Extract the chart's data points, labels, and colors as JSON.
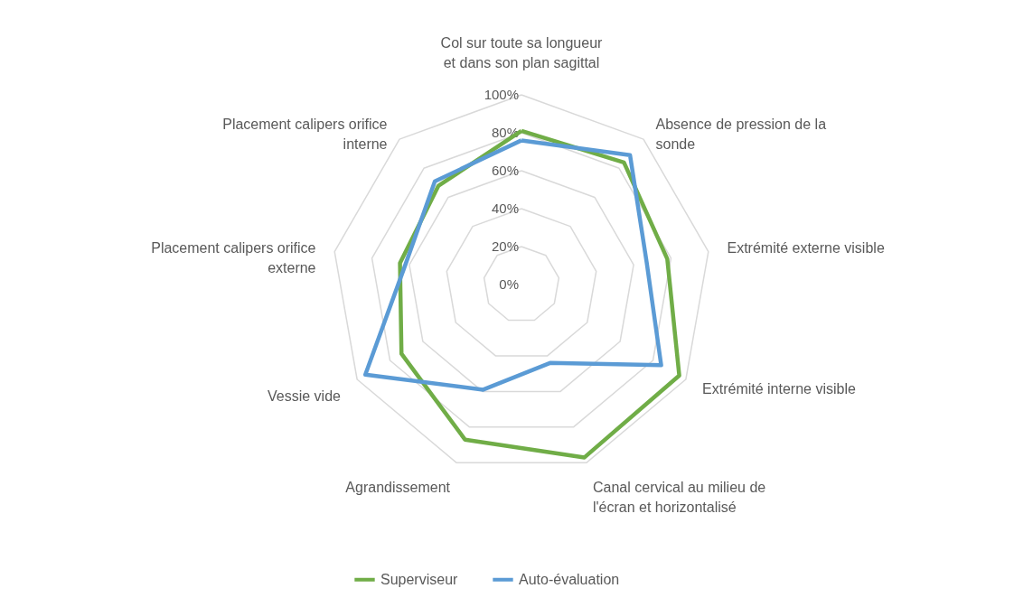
{
  "chart_data": {
    "type": "radar",
    "categories": [
      "Col sur toute sa longueur et dans son plan sagittal",
      "Absence de pression de la sonde",
      "Extrémité externe visible",
      "Extrémité interne visible",
      "Canal cervical au milieu de l'écran et horizontalisé",
      "Agrandissement",
      "Vessie vide",
      "Placement calipers orifice externe",
      "Placement calipers orifice interne"
    ],
    "series": [
      {
        "name": "Superviseur",
        "color": "#70ad47",
        "values": [
          81,
          84,
          78,
          96,
          97,
          87,
          73,
          65,
          68
        ]
      },
      {
        "name": "Auto-évaluation",
        "color": "#5b9bd5",
        "values": [
          76,
          89,
          67,
          85,
          44,
          59,
          95,
          62,
          71
        ]
      }
    ],
    "ylim": [
      0,
      100
    ],
    "yticks": [
      {
        "value": 0,
        "label": "0%"
      },
      {
        "value": 20,
        "label": "20%"
      },
      {
        "value": 40,
        "label": "40%"
      },
      {
        "value": 60,
        "label": "60%"
      },
      {
        "value": 80,
        "label": "80%"
      },
      {
        "value": 100,
        "label": "100%"
      }
    ],
    "grid": true,
    "legend": "bottom",
    "marker": "none",
    "line_style": "solid"
  }
}
